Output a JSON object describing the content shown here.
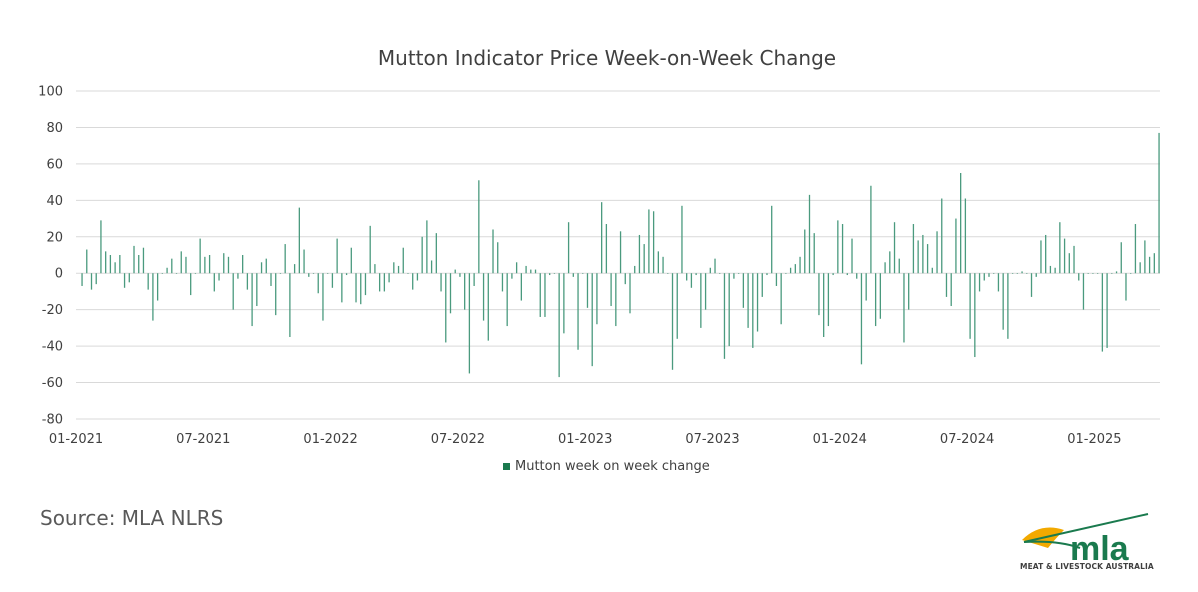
{
  "colors": {
    "bar": "#4a9a7e",
    "legend": "#1a7a4e",
    "grid": "#d9d9d9",
    "axis_text": "#404040"
  },
  "chart_data": {
    "type": "bar",
    "title": "Mutton Indicator Price Week-on-Week Change",
    "xlabel": "",
    "ylabel": "",
    "ylim": [
      -80,
      100
    ],
    "yticks": [
      100,
      80,
      60,
      40,
      20,
      0,
      -20,
      -40,
      -60,
      -80
    ],
    "xticks": [
      "01-2021",
      "07-2021",
      "01-2022",
      "07-2022",
      "01-2023",
      "07-2023",
      "01-2024",
      "07-2024",
      "01-2025"
    ],
    "grid": true,
    "legend_position": "bottom",
    "series": [
      {
        "name": "Mutton week on week change",
        "values": [
          -7,
          13,
          -9,
          -6,
          29,
          12,
          10,
          6,
          10,
          -8,
          -5,
          15,
          10,
          14,
          -9,
          -26,
          -15,
          0,
          3,
          8,
          0,
          12,
          9,
          -12,
          0,
          19,
          9,
          10,
          -10,
          -4,
          11,
          9,
          -20,
          -3,
          10,
          -9,
          -29,
          -18,
          6,
          8,
          -7,
          -23,
          0,
          16,
          -35,
          5,
          36,
          13,
          -2,
          0,
          -11,
          -26,
          0,
          -8,
          19,
          -16,
          -1,
          14,
          -16,
          -17,
          -12,
          26,
          5,
          -10,
          -10,
          -5,
          6,
          4,
          14,
          0,
          -9,
          -4,
          20,
          29,
          7,
          22,
          -10,
          -38,
          -22,
          2,
          -2,
          -20,
          -55,
          -7,
          51,
          -26,
          -37,
          24,
          17,
          -10,
          -29,
          -3,
          6,
          -15,
          4,
          2,
          2,
          -24,
          -24,
          -1,
          0,
          -57,
          -33,
          28,
          -2,
          -42,
          0,
          -19,
          -51,
          -28,
          39,
          27,
          -18,
          -29,
          23,
          -6,
          -22,
          4,
          21,
          16,
          35,
          34,
          12,
          9,
          0,
          -53,
          -36,
          37,
          -4,
          -8,
          -1,
          -30,
          -20,
          3,
          8,
          0,
          -47,
          -40,
          -3,
          0,
          -19,
          -30,
          -41,
          -32,
          -13,
          -1,
          37,
          -7,
          -28,
          0,
          3,
          5,
          9,
          24,
          43,
          22,
          -23,
          -35,
          -29,
          -1,
          29,
          27,
          -1,
          19,
          -3,
          -50,
          -15,
          48,
          -29,
          -25,
          6,
          12,
          28,
          8,
          -38,
          -20,
          27,
          18,
          21,
          16,
          3,
          23,
          41,
          -13,
          -18,
          30,
          55,
          41,
          -36,
          -46,
          -10,
          -4,
          -2,
          0,
          -10,
          -31,
          -36,
          0,
          0,
          1,
          0,
          -13,
          -2,
          18,
          21,
          4,
          3,
          28,
          19,
          11,
          15,
          -4,
          -20,
          0,
          0,
          0,
          -43,
          -41,
          0,
          1,
          17,
          -15,
          0,
          27,
          6,
          18,
          9,
          11,
          77
        ]
      }
    ]
  },
  "source_text": "Source: MLA NLRS",
  "logo": {
    "wordmark": "mla",
    "tagline": "MEAT & LIVESTOCK AUSTRALIA"
  }
}
